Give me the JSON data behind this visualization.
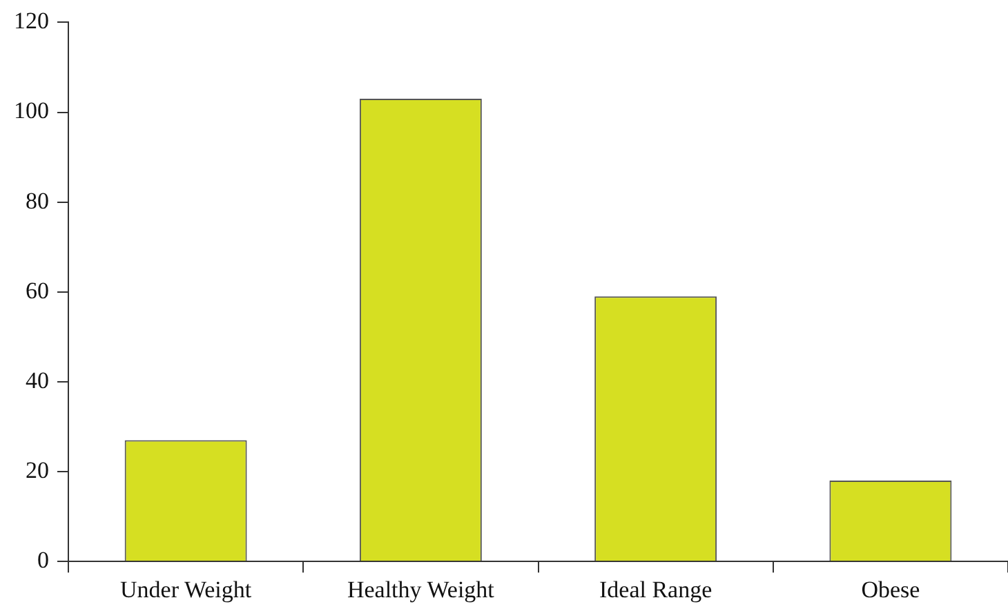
{
  "chart_data": {
    "type": "bar",
    "categories": [
      "Under Weight",
      "Healthy Weight",
      "Ideal Range",
      "Obese"
    ],
    "values": [
      27,
      103,
      59,
      18
    ],
    "color": "#d6df22",
    "ylim": [
      0,
      120
    ],
    "yticks": [
      0,
      20,
      40,
      60,
      80,
      100,
      120
    ],
    "grid": false
  }
}
